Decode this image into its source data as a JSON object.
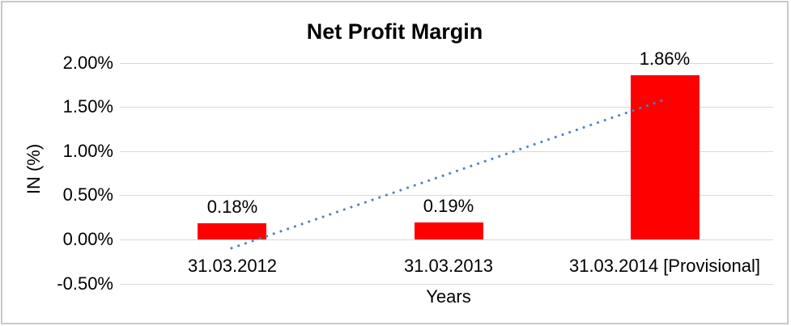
{
  "chart_data": {
    "type": "bar",
    "title": "Net Profit Margin",
    "xlabel": "Years",
    "ylabel": "IN (%)",
    "categories": [
      "31.03.2012",
      "31.03.2013",
      "31.03.2014 [Provisional]"
    ],
    "values": [
      0.18,
      0.19,
      1.86
    ],
    "data_labels": [
      "0.18%",
      "0.19%",
      "1.86%"
    ],
    "value_unit": "%",
    "ylim": [
      -0.5,
      2.0
    ],
    "yticks": [
      {
        "v": 2.0,
        "label": "2.00%"
      },
      {
        "v": 1.5,
        "label": "1.50%"
      },
      {
        "v": 1.0,
        "label": "1.00%"
      },
      {
        "v": 0.5,
        "label": "0.50%"
      },
      {
        "v": 0.0,
        "label": "0.00%"
      },
      {
        "v": -0.5,
        "label": "-0.50%"
      }
    ],
    "grid": true,
    "legend": "none",
    "trendline": {
      "type": "linear",
      "style": "dotted"
    },
    "colors": {
      "bar": "#FF0000",
      "trendline": "#4F81BD",
      "gridline": "#D9D9D9",
      "frame_border": "#C8C8C8",
      "text": "#000000"
    }
  }
}
